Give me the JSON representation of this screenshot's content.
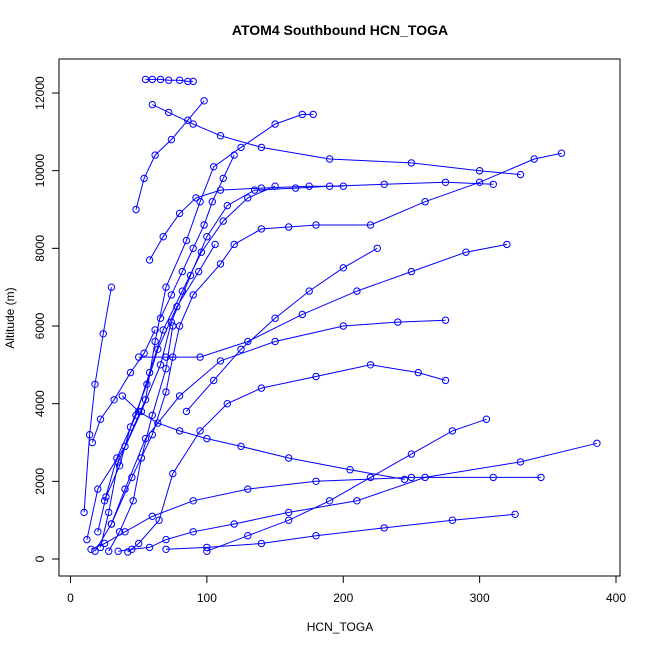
{
  "chart_data": {
    "type": "line",
    "title": "ATOM4 Southbound HCN_TOGA",
    "xlabel": "HCN_TOGA",
    "ylabel": "Altitude (m)",
    "xlim": [
      0,
      400
    ],
    "ylim": [
      0,
      12400
    ],
    "x_ticks": [
      "0",
      "100",
      "200",
      "300",
      "400"
    ],
    "y_ticks": [
      "0",
      "2000",
      "4000",
      "6000",
      "8000",
      "10000",
      "12000"
    ],
    "grid": false,
    "color": "#0000ff",
    "marker": "open-circle",
    "series": [
      {
        "x": [
          18,
          30,
          45,
          60,
          70,
          75,
          80,
          90,
          110,
          120,
          140,
          160,
          180,
          220,
          260,
          300,
          340,
          360
        ],
        "y": [
          200,
          900,
          2100,
          3200,
          4300,
          5200,
          6000,
          6800,
          7600,
          8100,
          8500,
          8550,
          8600,
          8600,
          9200,
          9700,
          10300,
          10450
        ]
      },
      {
        "x": [
          22,
          28,
          35,
          52,
          66,
          74,
          88,
          100,
          115,
          135,
          165,
          190,
          230,
          275,
          310
        ],
        "y": [
          300,
          1200,
          2500,
          3800,
          5000,
          6100,
          7300,
          8300,
          9100,
          9500,
          9550,
          9600,
          9650,
          9700,
          9650
        ]
      },
      {
        "x": [
          12,
          20,
          40,
          55,
          62,
          70,
          85,
          95,
          105,
          125,
          150,
          170,
          178
        ],
        "y": [
          500,
          1800,
          2900,
          4100,
          5600,
          7000,
          8200,
          9200,
          10100,
          10600,
          11200,
          11450,
          11450
        ]
      },
      {
        "x": [
          55,
          60,
          66,
          72,
          80,
          86,
          90
        ],
        "y": [
          12350,
          12350,
          12350,
          12330,
          12330,
          12300,
          12300
        ]
      },
      {
        "x": [
          35,
          45,
          58,
          70,
          90,
          120,
          160,
          210,
          260,
          330,
          386
        ],
        "y": [
          200,
          250,
          300,
          500,
          700,
          900,
          1200,
          1500,
          2100,
          2500,
          2980
        ]
      },
      {
        "x": [
          15,
          25,
          40,
          60,
          90,
          130,
          180,
          250,
          310,
          345
        ],
        "y": [
          250,
          400,
          700,
          1100,
          1500,
          1800,
          2000,
          2100,
          2100,
          2100
        ]
      },
      {
        "x": [
          30,
          40,
          55,
          80,
          110,
          150,
          200,
          240,
          275
        ],
        "y": [
          900,
          1800,
          3100,
          4200,
          5100,
          5600,
          6000,
          6100,
          6150
        ]
      },
      {
        "x": [
          42,
          50,
          65,
          75,
          95,
          115,
          140,
          180,
          220,
          255,
          275
        ],
        "y": [
          180,
          400,
          1000,
          2200,
          3300,
          4000,
          4400,
          4700,
          5000,
          4800,
          4600
        ]
      },
      {
        "x": [
          25,
          34,
          48,
          58,
          68,
          82,
          96,
          112,
          130,
          150
        ],
        "y": [
          1500,
          2600,
          3700,
          4800,
          5900,
          6900,
          7900,
          8700,
          9300,
          9600
        ]
      },
      {
        "x": [
          60,
          72,
          90,
          110,
          140,
          190,
          250,
          300,
          330
        ],
        "y": [
          11700,
          11500,
          11200,
          10900,
          10600,
          10300,
          10200,
          10000,
          9900
        ]
      },
      {
        "x": [
          20,
          26,
          36,
          44,
          56,
          64,
          78,
          94,
          106
        ],
        "y": [
          700,
          1600,
          2400,
          3400,
          4500,
          5400,
          6500,
          7400,
          8100
        ]
      },
      {
        "x": [
          50,
          70,
          95,
          130,
          170,
          210,
          250,
          290,
          320
        ],
        "y": [
          5200,
          5200,
          5200,
          5600,
          6300,
          6900,
          7400,
          7900,
          8100
        ]
      },
      {
        "x": [
          48,
          54,
          62,
          74,
          86,
          98
        ],
        "y": [
          9000,
          9800,
          10400,
          10800,
          11300,
          11800
        ]
      },
      {
        "x": [
          10,
          14,
          18,
          24,
          30
        ],
        "y": [
          1200,
          3200,
          4500,
          5800,
          7000
        ]
      },
      {
        "x": [
          70,
          100,
          140,
          180,
          230,
          280,
          326
        ],
        "y": [
          250,
          300,
          400,
          600,
          800,
          1000,
          1150
        ]
      },
      {
        "x": [
          38,
          50,
          64,
          80,
          100,
          125,
          160,
          205,
          245
        ],
        "y": [
          4200,
          3800,
          3500,
          3300,
          3100,
          2900,
          2600,
          2300,
          2050
        ]
      },
      {
        "x": [
          85,
          105,
          125,
          150,
          175,
          200,
          225
        ],
        "y": [
          3800,
          4600,
          5400,
          6200,
          6900,
          7500,
          8000
        ]
      },
      {
        "x": [
          58,
          68,
          80,
          92,
          110,
          140,
          175,
          200
        ],
        "y": [
          7700,
          8300,
          8900,
          9300,
          9500,
          9550,
          9600,
          9600
        ]
      },
      {
        "x": [
          28,
          36,
          46,
          52,
          60,
          70,
          75
        ],
        "y": [
          200,
          700,
          1500,
          2600,
          3700,
          4900,
          6000
        ]
      },
      {
        "x": [
          100,
          130,
          160,
          190,
          220,
          250,
          280,
          305
        ],
        "y": [
          200,
          600,
          1000,
          1500,
          2100,
          2700,
          3300,
          3600
        ]
      },
      {
        "x": [
          66,
          74,
          82,
          90,
          98,
          104,
          112,
          120
        ],
        "y": [
          6200,
          6800,
          7400,
          8000,
          8600,
          9200,
          9800,
          10400
        ]
      },
      {
        "x": [
          16,
          22,
          32,
          44,
          54,
          62
        ],
        "y": [
          3000,
          3600,
          4100,
          4800,
          5300,
          5900
        ]
      }
    ]
  }
}
